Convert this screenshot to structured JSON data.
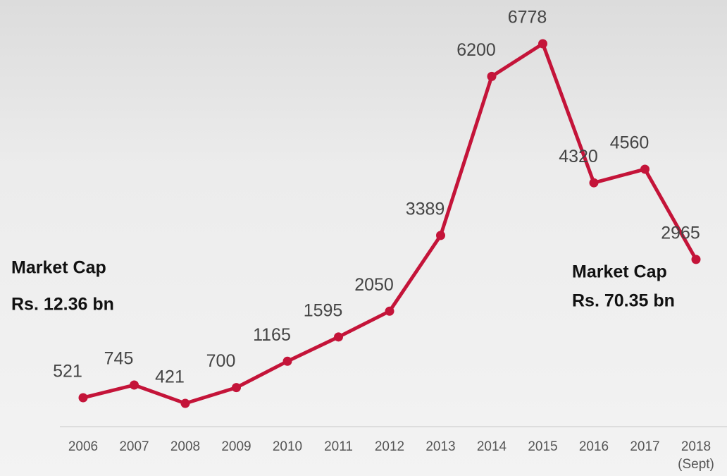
{
  "chart_data": {
    "type": "line",
    "categories": [
      "2006",
      "2007",
      "2008",
      "2009",
      "2010",
      "2011",
      "2012",
      "2013",
      "2014",
      "2015",
      "2016",
      "2017",
      "2018"
    ],
    "category_note": "(Sept)",
    "series": [
      {
        "color": "#c41439",
        "values": [
          521,
          745,
          421,
          700,
          1165,
          1595,
          2050,
          3389,
          6200,
          6778,
          4320,
          4560,
          2965
        ]
      }
    ],
    "annotations": [
      {
        "lines": [
          "Market Cap",
          "Rs. 12.36 bn"
        ]
      },
      {
        "lines": [
          "Market Cap",
          "Rs. 70.35 bn"
        ]
      }
    ]
  }
}
